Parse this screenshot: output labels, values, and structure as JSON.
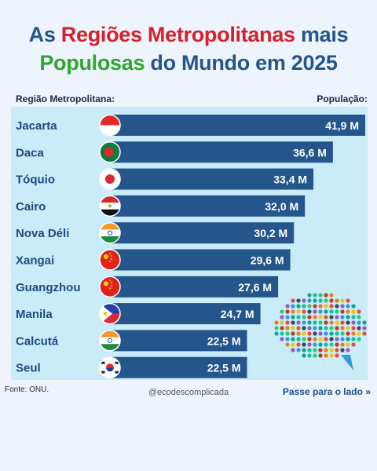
{
  "title": {
    "line1_a": "As ",
    "line1_b": "Regiões Metropolitanas",
    "line1_c": " mais",
    "line2_a": "Populosas",
    "line2_b": " do Mundo em 2025"
  },
  "headers": {
    "region": "Região Metropolitana:",
    "population": "População:"
  },
  "chart_data": {
    "type": "bar",
    "orientation": "horizontal",
    "categories": [
      "Jacarta",
      "Daca",
      "Tóquio",
      "Cairo",
      "Nova Déli",
      "Xangai",
      "Guangzhou",
      "Manila",
      "Calcutá",
      "Seul"
    ],
    "values": [
      41.9,
      36.6,
      33.4,
      32.0,
      30.2,
      29.6,
      27.6,
      24.7,
      22.5,
      22.5
    ],
    "value_labels": [
      "41,9 M",
      "36,6 M",
      "33,4 M",
      "32,0 M",
      "30,2 M",
      "29,6 M",
      "27,6 M",
      "24,7 M",
      "22,5 M",
      "22,5 M"
    ],
    "flag_icons": [
      "flag-indonesia-icon",
      "flag-bangladesh-icon",
      "flag-japan-icon",
      "flag-egypt-icon",
      "flag-india-icon",
      "flag-china-icon",
      "flag-china-icon",
      "flag-philippines-icon",
      "flag-india-icon",
      "flag-south-korea-icon"
    ],
    "bar_color": "#24568c"
  },
  "footer": {
    "source": "Fonte: ONU.",
    "handle": "@ecodescomplicada",
    "swipe": "Passe para o lado",
    "swipe_icon": "double-chevron-right-icon"
  },
  "decor": {
    "crowd_icon": "crowd-speech-bubble-icon"
  },
  "colors": {
    "title_blue": "#24568c",
    "title_red": "#d6202a",
    "title_green": "#2fa52f",
    "panel": "#c9ecf8",
    "background": "#edf4fc"
  }
}
